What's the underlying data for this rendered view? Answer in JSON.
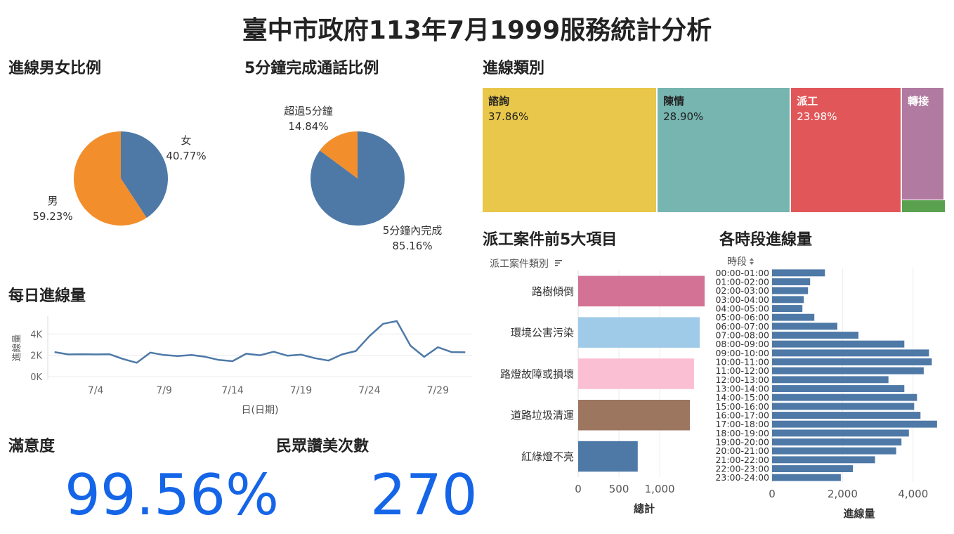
{
  "title": "臺中市政府113年7月1999服務統計分析",
  "sections": {
    "gender": "進線男女比例",
    "call5": "5分鐘完成通話比例",
    "category": "進線類別",
    "daily": "每日進線量",
    "dispatch": "派工案件前5大項目",
    "hourly": "各時段進線量",
    "satisfaction": "滿意度",
    "praise": "民眾讚美次數"
  },
  "kpi": {
    "satisfaction": "99.56%",
    "praise": "270"
  },
  "colors": {
    "blue": "#4e79a7",
    "orange": "#f28e2b",
    "kpi": "#1565e8"
  },
  "chart_data": [
    {
      "id": "gender",
      "type": "pie",
      "slices": [
        {
          "name": "女",
          "value": 40.77,
          "label": "40.77%",
          "color": "#4e79a7"
        },
        {
          "name": "男",
          "value": 59.23,
          "label": "59.23%",
          "color": "#f28e2b"
        }
      ]
    },
    {
      "id": "call5",
      "type": "pie",
      "slices": [
        {
          "name": "5分鐘內完成",
          "value": 85.16,
          "label": "85.16%",
          "color": "#4e79a7"
        },
        {
          "name": "超過5分鐘",
          "value": 14.84,
          "label": "14.84%",
          "color": "#f28e2b"
        }
      ]
    },
    {
      "id": "category",
      "type": "treemap",
      "items": [
        {
          "name": "諮詢",
          "value": 37.86,
          "label": "37.86%",
          "color": "#e9c74a"
        },
        {
          "name": "陳情",
          "value": 28.9,
          "label": "28.90%",
          "color": "#76b5b0"
        },
        {
          "name": "派工",
          "value": 23.98,
          "label": "23.98%",
          "color": "#e15759"
        },
        {
          "name": "轉接",
          "value": 8.3,
          "label": "",
          "color": "#b07aa1"
        },
        {
          "name": "",
          "value": 0.96,
          "label": "",
          "color": "#59a14f"
        }
      ]
    },
    {
      "id": "daily",
      "type": "line",
      "ylabel": "進線量",
      "xlabel": "日(日期)",
      "ylim": [
        0,
        5400
      ],
      "yticks": [
        {
          "v": 0,
          "label": "0K"
        },
        {
          "v": 2000,
          "label": "2K"
        },
        {
          "v": 4000,
          "label": "4K"
        }
      ],
      "xlim": [
        0.5,
        31.5
      ],
      "xticks": [
        {
          "v": 4,
          "label": "7/4"
        },
        {
          "v": 9,
          "label": "7/9"
        },
        {
          "v": 14,
          "label": "7/14"
        },
        {
          "v": 19,
          "label": "7/19"
        },
        {
          "v": 24,
          "label": "7/24"
        },
        {
          "v": 29,
          "label": "7/29"
        }
      ],
      "x": [
        1,
        2,
        3,
        4,
        5,
        6,
        7,
        8,
        9,
        10,
        11,
        12,
        13,
        14,
        15,
        16,
        17,
        18,
        19,
        20,
        21,
        22,
        23,
        24,
        25,
        26,
        27,
        28,
        29,
        30,
        31
      ],
      "values": [
        2300,
        2080,
        2100,
        2080,
        2100,
        1650,
        1300,
        2250,
        2020,
        1930,
        2020,
        1860,
        1560,
        1450,
        2150,
        2000,
        2330,
        1960,
        2060,
        1730,
        1500,
        2080,
        2400,
        3800,
        4950,
        5200,
        2900,
        1850,
        2750,
        2300,
        2280
      ],
      "color": "#4e79a7"
    },
    {
      "id": "dispatch",
      "type": "bar",
      "orientation": "horizontal",
      "header": "派工案件類別",
      "xlabel": "總計",
      "xlim": [
        0,
        1550
      ],
      "xticks": [
        {
          "v": 0,
          "label": "0"
        },
        {
          "v": 500,
          "label": "500"
        },
        {
          "v": 1000,
          "label": "1,000"
        }
      ],
      "categories": [
        "路樹傾倒",
        "環境公害污染",
        "路燈故障或損壞",
        "道路垃圾清運",
        "紅綠燈不亮"
      ],
      "values": [
        1550,
        1490,
        1420,
        1370,
        730
      ],
      "colors": [
        "#d37295",
        "#a0cbe8",
        "#fabfd2",
        "#9d7660",
        "#4e79a7"
      ]
    },
    {
      "id": "hourly",
      "type": "bar",
      "orientation": "horizontal",
      "header": "時段",
      "xlabel": "進線量",
      "xlim": [
        0,
        5000
      ],
      "xticks": [
        {
          "v": 0,
          "label": "0"
        },
        {
          "v": 2000,
          "label": "2,000"
        },
        {
          "v": 4000,
          "label": "4,000"
        }
      ],
      "categories": [
        "00:00-01:00",
        "01:00-02:00",
        "02:00-03:00",
        "03:00-04:00",
        "04:00-05:00",
        "05:00-06:00",
        "06:00-07:00",
        "07:00-08:00",
        "08:00-09:00",
        "09:00-10:00",
        "10:00-11:00",
        "11:00-12:00",
        "12:00-13:00",
        "13:00-14:00",
        "14:00-15:00",
        "15:00-16:00",
        "16:00-17:00",
        "17:00-18:00",
        "18:00-19:00",
        "19:00-20:00",
        "20:00-21:00",
        "21:00-22:00",
        "22:00-23:00",
        "23:00-24:00"
      ],
      "values": [
        1500,
        1080,
        1020,
        900,
        860,
        1200,
        1850,
        2450,
        3750,
        4450,
        4530,
        4300,
        3300,
        3750,
        4110,
        4030,
        4210,
        4680,
        3880,
        3670,
        3520,
        2920,
        2290,
        1950
      ],
      "color": "#4e79a7"
    }
  ]
}
